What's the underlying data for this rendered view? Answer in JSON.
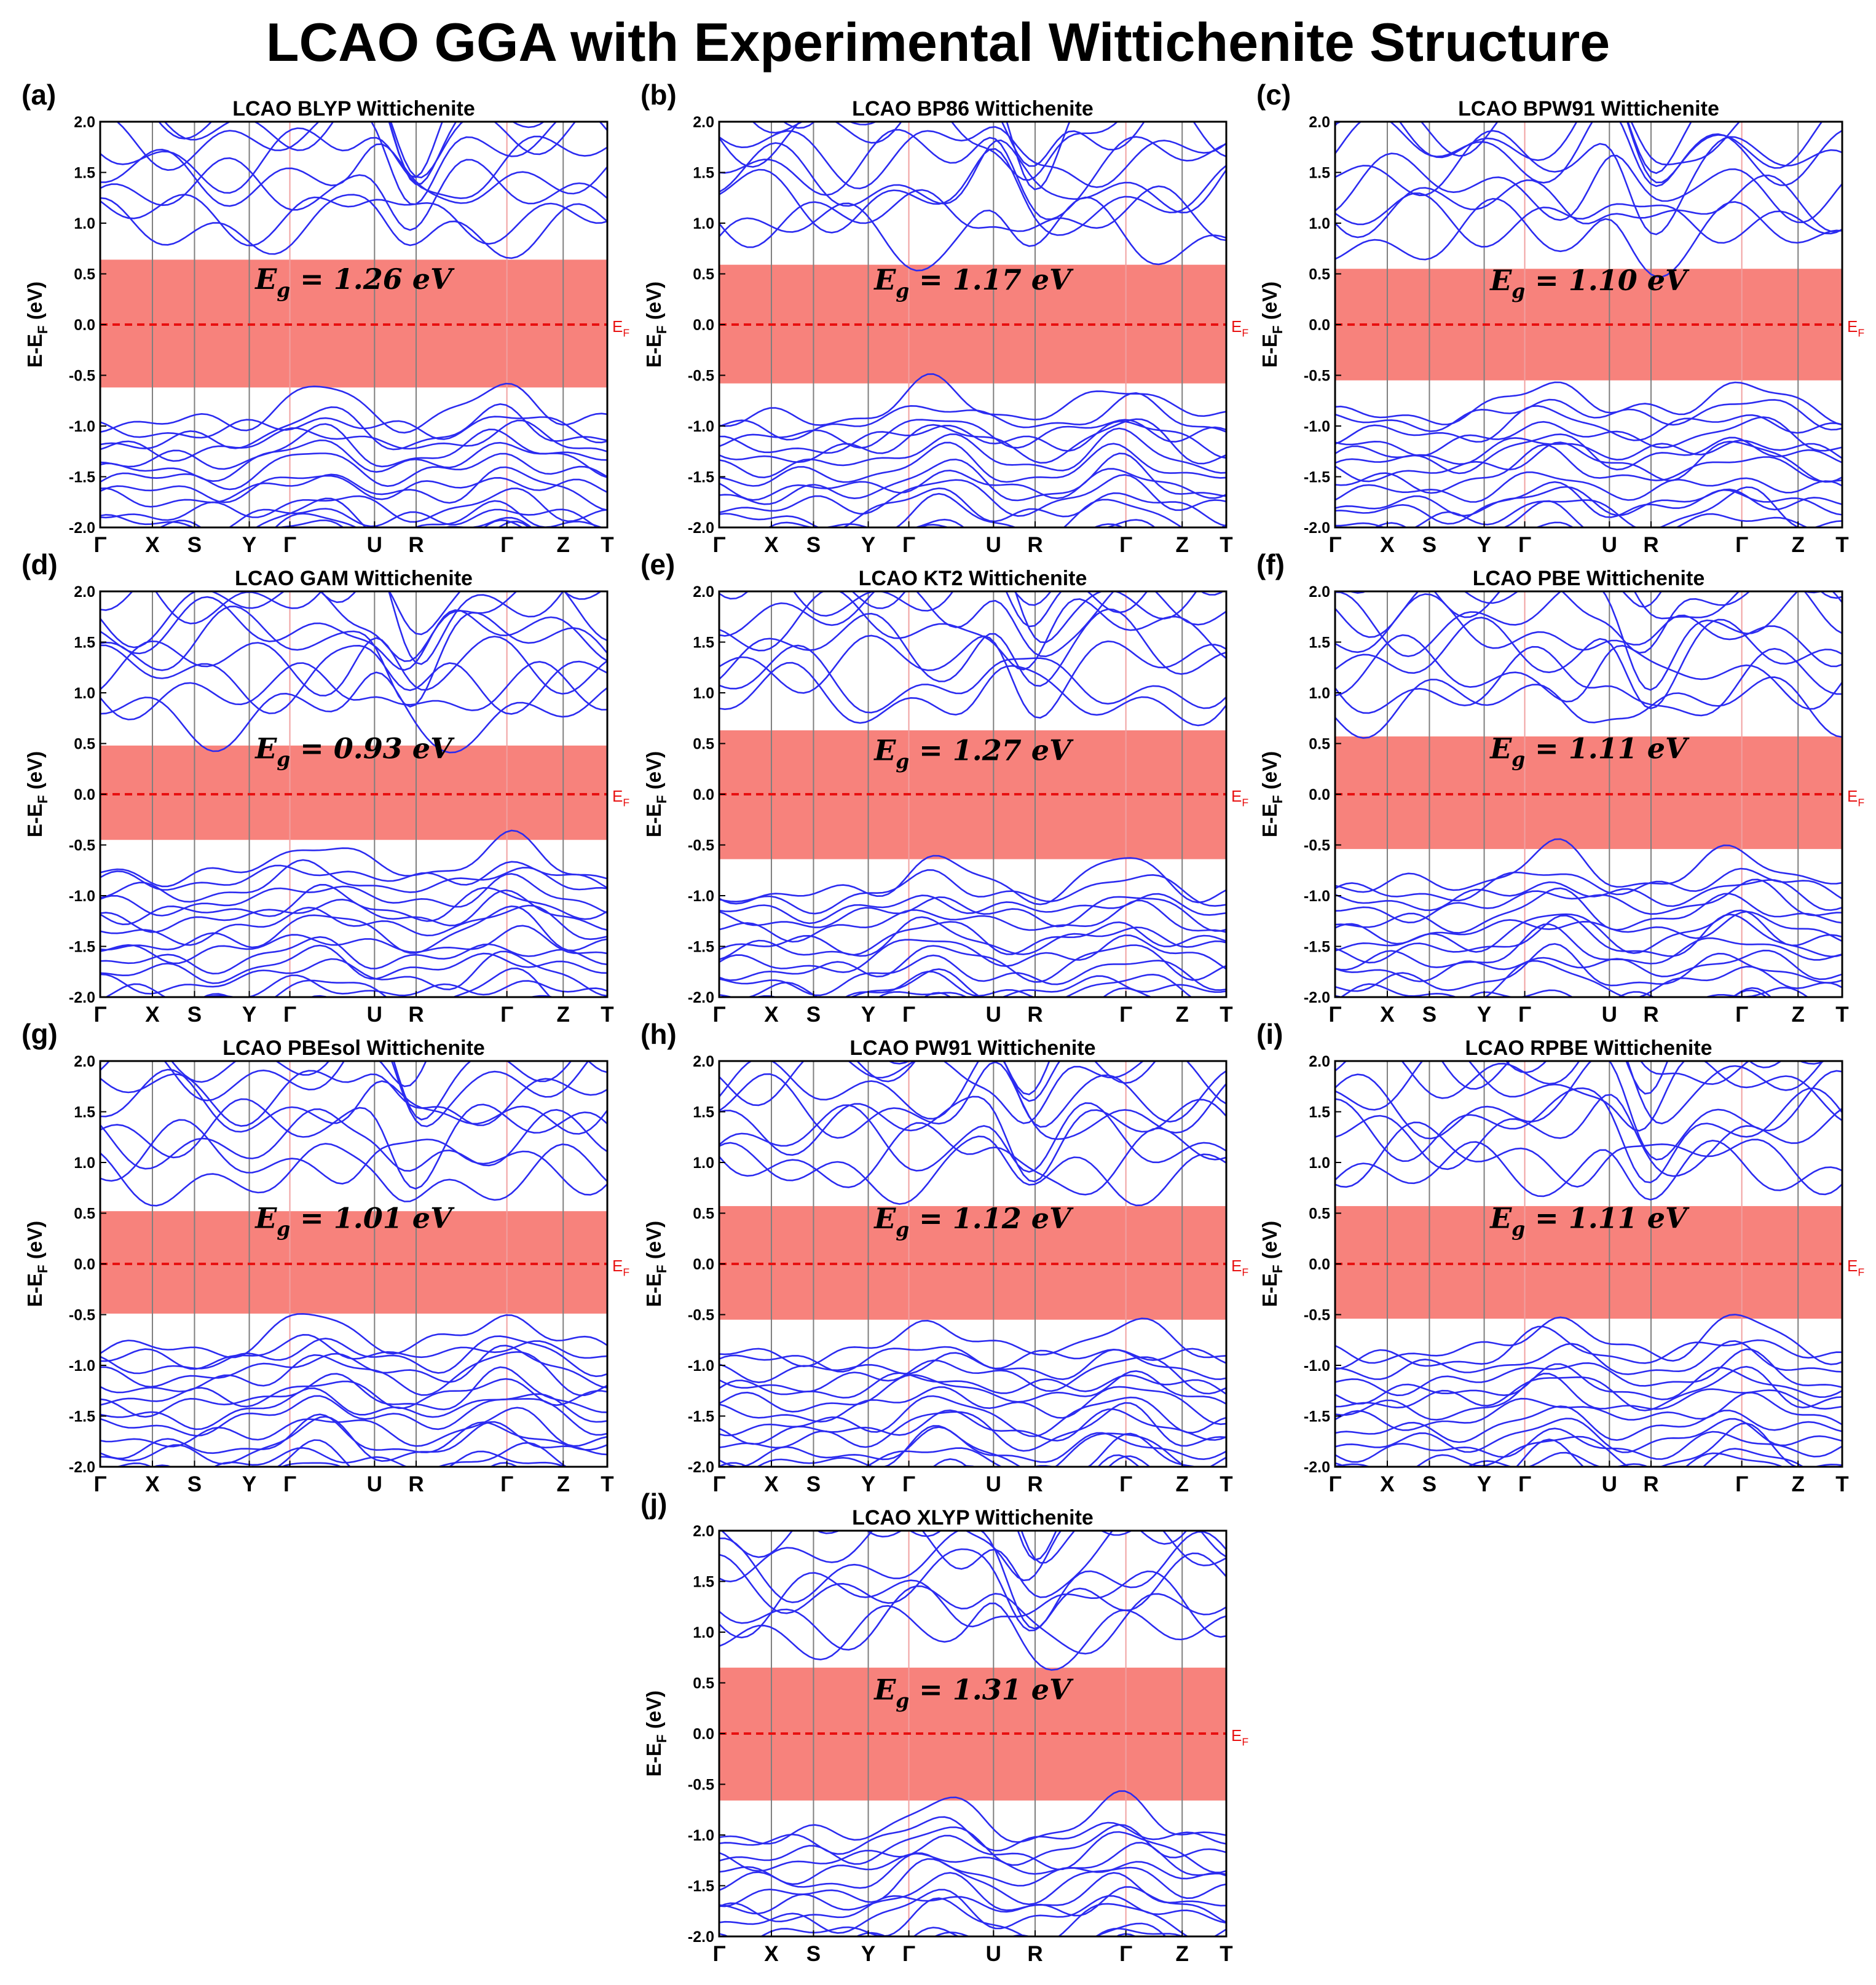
{
  "title": "LCAO GGA with Experimental Wittichenite Structure",
  "colors": {
    "band": "#2b2bf0",
    "gap_fill": "#f7827c",
    "fermi": "#e81010",
    "sym_line": "#7f7f7f",
    "axis": "#000000",
    "text": "#000000"
  },
  "axes": {
    "ylabel": "E-E_F (eV)",
    "fermi_label": "E_F",
    "ylim": [
      -2.0,
      2.0
    ],
    "yticks": [
      "2.0",
      "1.5",
      "1.0",
      "0.5",
      "0.0",
      "-0.5",
      "-1.0",
      "-1.5",
      "-2.0"
    ],
    "kpath": [
      "Γ",
      "X",
      "S",
      "Y",
      "Γ",
      "U",
      "R",
      "Γ",
      "Z",
      "T"
    ]
  },
  "chart_data": [
    {
      "type": "line",
      "panel": "(a)",
      "title": "LCAO BLYP Wittichenite",
      "gap_label": "E_g = 1.26 eV",
      "gap_eV": 1.26,
      "cbm": 0.64,
      "vbm": -0.62,
      "ylim": [
        -2.0,
        2.0
      ],
      "xlabel": "",
      "ylabel": "E-E_F (eV)"
    },
    {
      "type": "line",
      "panel": "(b)",
      "title": "LCAO BP86 Wittichenite",
      "gap_label": "E_g = 1.17 eV",
      "gap_eV": 1.17,
      "cbm": 0.59,
      "vbm": -0.58,
      "ylim": [
        -2.0,
        2.0
      ],
      "xlabel": "",
      "ylabel": "E-E_F (eV)"
    },
    {
      "type": "line",
      "panel": "(c)",
      "title": "LCAO BPW91 Wittichenite",
      "gap_label": "E_g = 1.10 eV",
      "gap_eV": 1.1,
      "cbm": 0.55,
      "vbm": -0.55,
      "ylim": [
        -2.0,
        2.0
      ],
      "xlabel": "",
      "ylabel": "E-E_F (eV)"
    },
    {
      "type": "line",
      "panel": "(d)",
      "title": "LCAO GAM Wittichenite",
      "gap_label": "E_g = 0.93 eV",
      "gap_eV": 0.93,
      "cbm": 0.48,
      "vbm": -0.45,
      "ylim": [
        -2.0,
        2.0
      ],
      "xlabel": "",
      "ylabel": "E-E_F (eV)"
    },
    {
      "type": "line",
      "panel": "(e)",
      "title": "LCAO KT2 Wittichenite",
      "gap_label": "E_g = 1.27 eV",
      "gap_eV": 1.27,
      "cbm": 0.63,
      "vbm": -0.64,
      "ylim": [
        -2.0,
        2.0
      ],
      "xlabel": "",
      "ylabel": "E-E_F (eV)"
    },
    {
      "type": "line",
      "panel": "(f)",
      "title": "LCAO PBE Wittichenite",
      "gap_label": "E_g = 1.11 eV",
      "gap_eV": 1.11,
      "cbm": 0.57,
      "vbm": -0.54,
      "ylim": [
        -2.0,
        2.0
      ],
      "xlabel": "",
      "ylabel": "E-E_F (eV)"
    },
    {
      "type": "line",
      "panel": "(g)",
      "title": "LCAO PBEsol Wittichenite",
      "gap_label": "E_g = 1.01 eV",
      "gap_eV": 1.01,
      "cbm": 0.52,
      "vbm": -0.49,
      "ylim": [
        -2.0,
        2.0
      ],
      "xlabel": "",
      "ylabel": "E-E_F (eV)"
    },
    {
      "type": "line",
      "panel": "(h)",
      "title": "LCAO PW91 Wittichenite",
      "gap_label": "E_g = 1.12 eV",
      "gap_eV": 1.12,
      "cbm": 0.57,
      "vbm": -0.55,
      "ylim": [
        -2.0,
        2.0
      ],
      "xlabel": "",
      "ylabel": "E-E_F (eV)"
    },
    {
      "type": "line",
      "panel": "(i)",
      "title": "LCAO RPBE Wittichenite",
      "gap_label": "E_g = 1.11 eV",
      "gap_eV": 1.11,
      "cbm": 0.57,
      "vbm": -0.54,
      "ylim": [
        -2.0,
        2.0
      ],
      "xlabel": "",
      "ylabel": "E-E_F (eV)"
    },
    {
      "type": "line",
      "panel": "(j)",
      "title": "LCAO XLYP Wittichenite",
      "gap_label": "E_g = 1.31 eV",
      "gap_eV": 1.31,
      "cbm": 0.65,
      "vbm": -0.66,
      "ylim": [
        -2.0,
        2.0
      ],
      "xlabel": "",
      "ylabel": "E-E_F (eV)"
    }
  ]
}
